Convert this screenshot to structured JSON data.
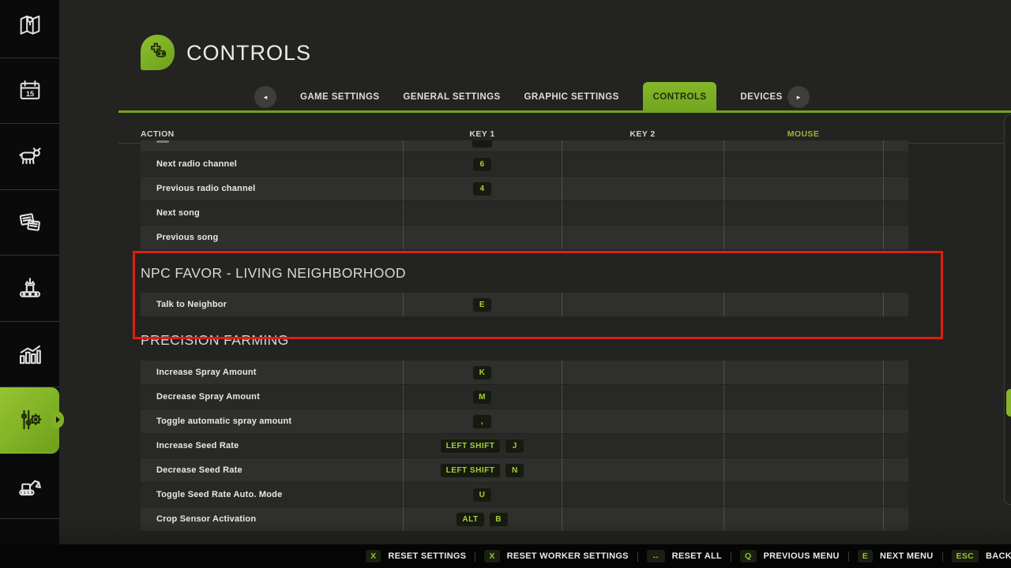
{
  "colors": {
    "accent_green": "#7fb124",
    "lime_key_text": "#a8cf3a",
    "annotation_red": "#dd1f13",
    "tab_active_bg": "#79a922",
    "row_light": "#2f2f2d",
    "row_dark": "#282826"
  },
  "sidebar": {
    "active_index": 6,
    "calendar_day": "15",
    "items": [
      {
        "id": "map",
        "icon": "map-icon"
      },
      {
        "id": "calendar",
        "icon": "calendar-icon"
      },
      {
        "id": "animals",
        "icon": "cow-icon"
      },
      {
        "id": "contracts",
        "icon": "contracts-icon"
      },
      {
        "id": "production",
        "icon": "production-icon"
      },
      {
        "id": "statistics",
        "icon": "statistics-icon"
      },
      {
        "id": "settings",
        "icon": "settings-gear-icon"
      },
      {
        "id": "construction",
        "icon": "excavator-icon"
      }
    ]
  },
  "header": {
    "title": "CONTROLS",
    "icon": "gamepad-icon"
  },
  "tabs": {
    "prev_arrow": "◂",
    "next_arrow": "▸",
    "active_index": 3,
    "items": [
      {
        "label": "GAME SETTINGS"
      },
      {
        "label": "GENERAL SETTINGS"
      },
      {
        "label": "GRAPHIC SETTINGS"
      },
      {
        "label": "CONTROLS"
      },
      {
        "label": "DEVICES"
      }
    ]
  },
  "table": {
    "columns": [
      "ACTION",
      "KEY 1",
      "KEY 2",
      "MOUSE"
    ],
    "truncated_top_row": {
      "badge_sliver": true
    },
    "groups": [
      {
        "title": "",
        "rows": [
          {
            "action": "Next radio channel",
            "key1": [
              "6"
            ]
          },
          {
            "action": "Previous radio channel",
            "key1": [
              "4"
            ]
          },
          {
            "action": "Next song",
            "key1": []
          },
          {
            "action": "Previous song",
            "key1": []
          }
        ]
      },
      {
        "title": "NPC FAVOR - LIVING NEIGHBORHOOD",
        "rows": [
          {
            "action": "Talk to Neighbor",
            "key1": [
              "E"
            ]
          }
        ]
      },
      {
        "title": "PRECISION FARMING",
        "rows": [
          {
            "action": "Increase Spray Amount",
            "key1": [
              "K"
            ]
          },
          {
            "action": "Decrease Spray Amount",
            "key1": [
              "M"
            ]
          },
          {
            "action": "Toggle automatic spray amount",
            "key1": [
              ","
            ]
          },
          {
            "action": "Increase Seed Rate",
            "key1": [
              "LEFT SHIFT",
              "J"
            ]
          },
          {
            "action": "Decrease Seed Rate",
            "key1": [
              "LEFT SHIFT",
              "N"
            ]
          },
          {
            "action": "Toggle Seed Rate Auto. Mode",
            "key1": [
              "U"
            ]
          },
          {
            "action": "Crop Sensor Activation",
            "key1": [
              "ALT",
              "B"
            ]
          }
        ]
      }
    ]
  },
  "bottom_bar": {
    "items": [
      {
        "key": "X",
        "label": "RESET SETTINGS"
      },
      {
        "key": "X",
        "label": "RESET WORKER SETTINGS"
      },
      {
        "key": "↔",
        "label": "RESET ALL"
      },
      {
        "key": "Q",
        "label": "PREVIOUS MENU"
      },
      {
        "key": "E",
        "label": "NEXT MENU"
      },
      {
        "key": "ESC",
        "label": "BACK"
      }
    ]
  }
}
